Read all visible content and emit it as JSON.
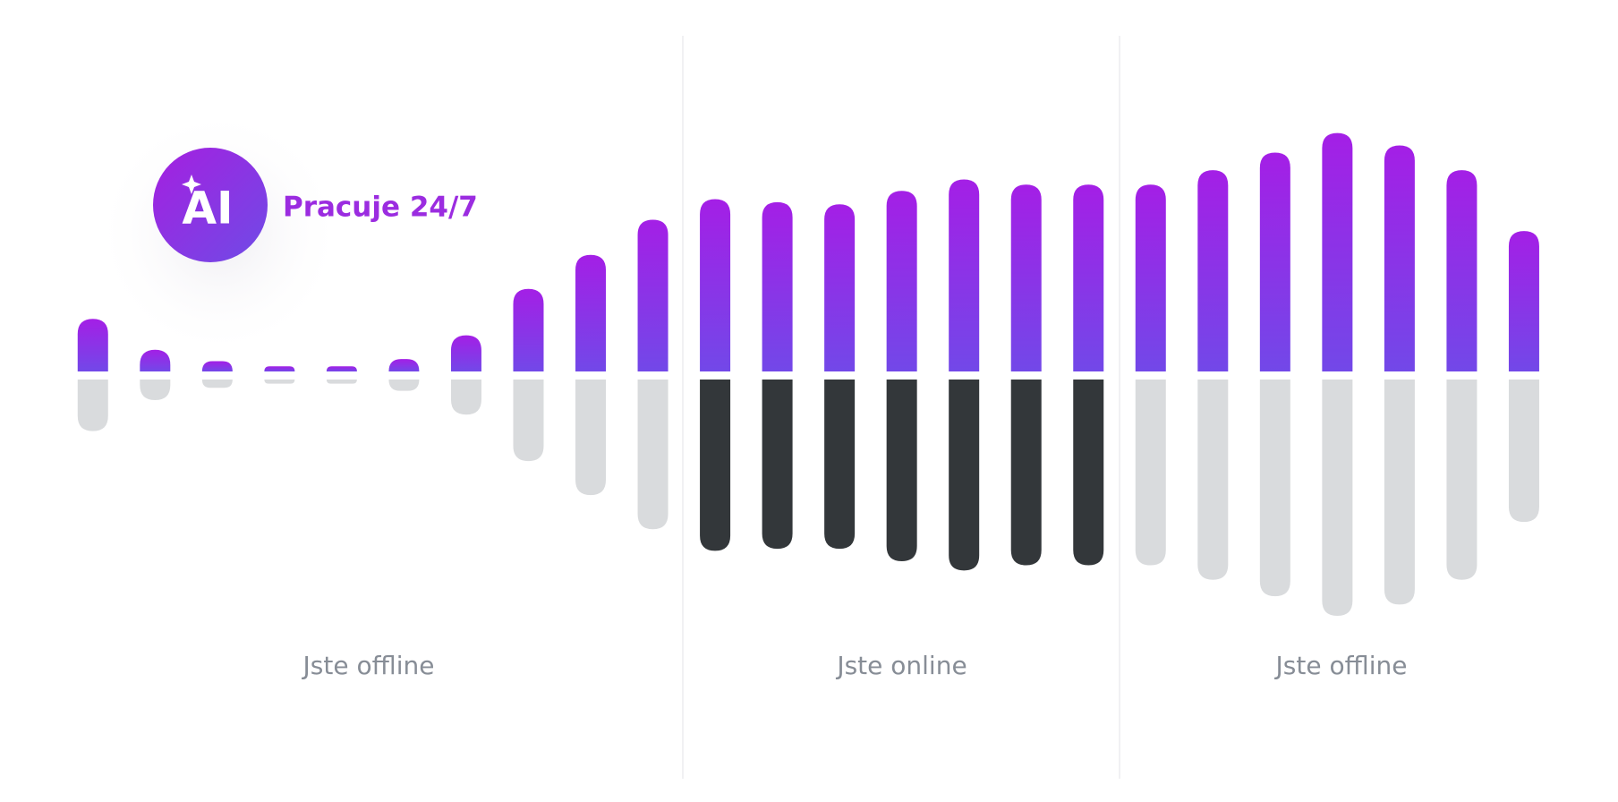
{
  "chart_data": {
    "type": "mirrored-bar",
    "badge": {
      "icon": "AI",
      "text": "Pracuje 24/7"
    },
    "annotations": [
      "Jste offline",
      "Jste online",
      "Jste offline"
    ],
    "series": [
      {
        "color": "#9b24e6",
        "values": [
          51,
          21,
          10,
          5,
          5,
          12,
          35,
          80,
          113,
          147,
          167,
          164,
          162,
          175,
          186,
          181,
          181,
          181,
          195,
          212,
          231,
          219,
          195,
          136
        ]
      },
      {
        "color": "#d9dbdd",
        "values": [
          50,
          20,
          8,
          4,
          4,
          11,
          34,
          79,
          112,
          145,
          null,
          null,
          null,
          null,
          null,
          null,
          null,
          180,
          194,
          210,
          229,
          218,
          194,
          138
        ]
      },
      {
        "color": "#33373a",
        "values": [
          null,
          null,
          null,
          null,
          null,
          null,
          null,
          null,
          null,
          null,
          166,
          164,
          164,
          176,
          185,
          180,
          180,
          null,
          null,
          null,
          null,
          null,
          null,
          null
        ]
      }
    ]
  }
}
